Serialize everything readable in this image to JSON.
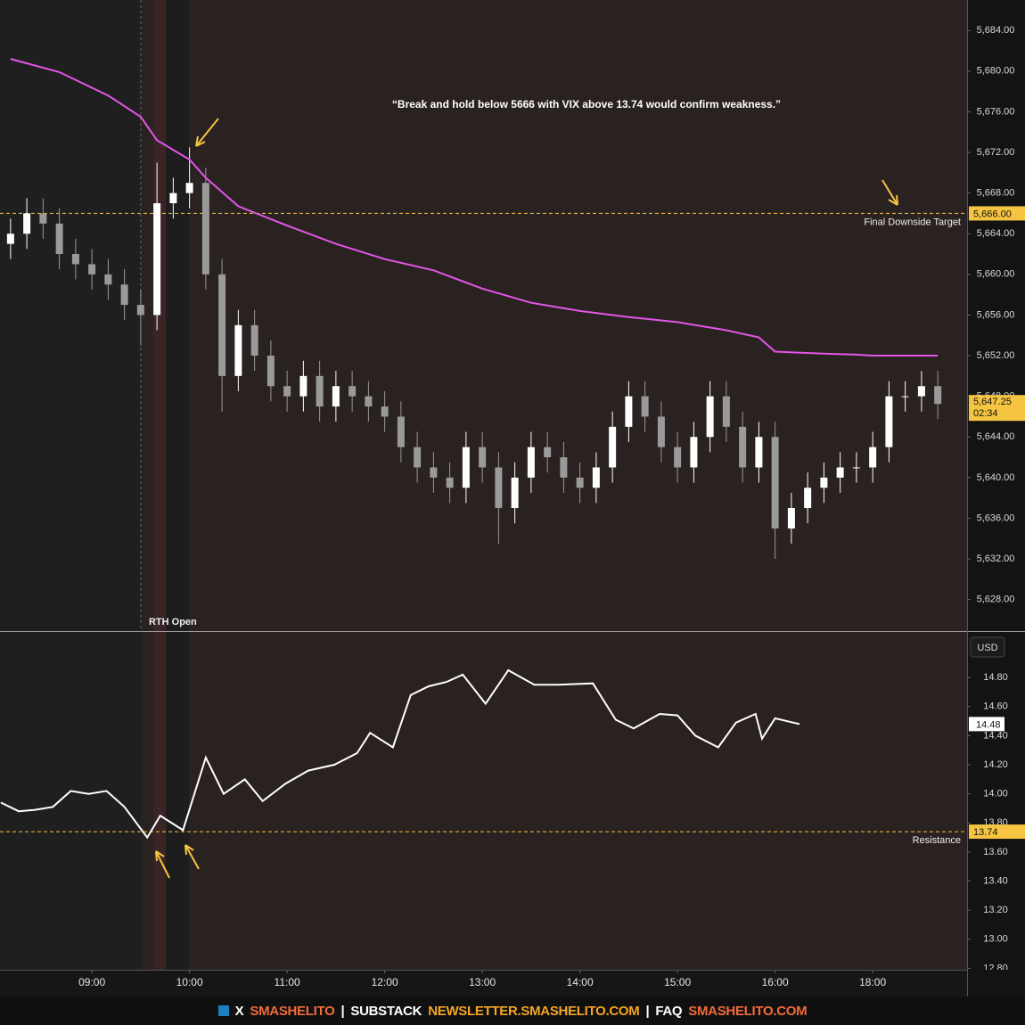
{
  "chart_data": [
    {
      "type": "candlestick",
      "annotation": "“Break and hold below 5666 with VIX above 13.74 would confirm weakness.”",
      "x": [
        490,
        500,
        510,
        520,
        530,
        540,
        550,
        560,
        570,
        580,
        590,
        600,
        610,
        620,
        630,
        640,
        650,
        660,
        670,
        680,
        690,
        700,
        710,
        720,
        730,
        740,
        750,
        760,
        770,
        780,
        790,
        800,
        810,
        820,
        830,
        840,
        850,
        860,
        870,
        880,
        890,
        900,
        910,
        920,
        930,
        940,
        950,
        960,
        970,
        980,
        990,
        1000,
        1010,
        1080,
        1090,
        1100,
        1110,
        1120
      ],
      "open": [
        5663,
        5664,
        5666,
        5665,
        5662,
        5661,
        5660,
        5659,
        5657,
        5656,
        5667,
        5668,
        5669,
        5660,
        5650,
        5655,
        5652,
        5649,
        5648,
        5650,
        5647,
        5649,
        5648,
        5647,
        5646,
        5643,
        5641,
        5640,
        5639,
        5643,
        5641,
        5637,
        5640,
        5643,
        5642,
        5640,
        5639,
        5641,
        5645,
        5648,
        5646,
        5643,
        5641,
        5644,
        5648,
        5645,
        5641,
        5644,
        5635,
        5637,
        5639,
        5640,
        5641,
        5641,
        5643,
        5648,
        5648,
        5649
      ],
      "high": [
        5665.5,
        5667.5,
        5667.5,
        5666.5,
        5663.5,
        5662.5,
        5661.5,
        5660.5,
        5658.5,
        5671,
        5669.5,
        5672.5,
        5670.5,
        5661.5,
        5656.5,
        5656.5,
        5653.5,
        5650.5,
        5651.5,
        5651.5,
        5650.5,
        5650.5,
        5649.5,
        5648.5,
        5647.5,
        5644.5,
        5642.5,
        5641.5,
        5644.5,
        5644.5,
        5642.5,
        5641.5,
        5644.5,
        5644.5,
        5643.5,
        5641.5,
        5642.5,
        5646.5,
        5649.5,
        5649.5,
        5647.5,
        5644.5,
        5645.5,
        5649.5,
        5649.5,
        5646.5,
        5645.5,
        5645.5,
        5638.5,
        5640.5,
        5641.5,
        5642.5,
        5642.5,
        5644.5,
        5649.5,
        5649.5,
        5650.5,
        5650.5
      ],
      "low": [
        5661.5,
        5662.5,
        5663.5,
        5660.5,
        5659.5,
        5658.5,
        5657.5,
        5655.5,
        5653,
        5654.5,
        5665.5,
        5666.5,
        5658.5,
        5646.5,
        5648.5,
        5650.5,
        5647.5,
        5646.5,
        5646.5,
        5645.5,
        5645.5,
        5646.5,
        5645.5,
        5644.5,
        5641.5,
        5639.5,
        5638.5,
        5637.5,
        5637.5,
        5639.5,
        5633.5,
        5635.5,
        5638.5,
        5640.5,
        5638.5,
        5637.5,
        5637.5,
        5639.5,
        5643.5,
        5644.5,
        5641.5,
        5639.5,
        5639.5,
        5642.5,
        5643.5,
        5639.5,
        5639.5,
        5632,
        5633.5,
        5635.5,
        5637.5,
        5638.5,
        5639.5,
        5639.5,
        5641.5,
        5646.5,
        5646.5,
        5645.75
      ],
      "close": [
        5664,
        5666,
        5665,
        5662,
        5661,
        5660,
        5659,
        5657,
        5656,
        5667,
        5668,
        5669,
        5660,
        5650,
        5655,
        5652,
        5649,
        5648,
        5650,
        5647,
        5649,
        5648,
        5647,
        5646,
        5643,
        5641,
        5640,
        5639,
        5643,
        5641,
        5637,
        5640,
        5643,
        5642,
        5640,
        5639,
        5641,
        5645,
        5648,
        5646,
        5643,
        5641,
        5644,
        5648,
        5645,
        5641,
        5644,
        5635,
        5637,
        5639,
        5640,
        5641,
        5641,
        5643,
        5648,
        5648,
        5649,
        5647.25
      ],
      "up_color": "#ffffff",
      "down_color": "#9a9a9a",
      "line": {
        "x": [
          490,
          520,
          550,
          570,
          580,
          600,
          610,
          630,
          660,
          690,
          720,
          750,
          780,
          810,
          840,
          870,
          900,
          930,
          950,
          960,
          990,
          1010,
          1080,
          1100,
          1120
        ],
        "values": [
          5681.2,
          5679.9,
          5677.6,
          5675.5,
          5673.2,
          5671.3,
          5669.5,
          5666.7,
          5664.8,
          5663.0,
          5661.5,
          5660.4,
          5658.6,
          5657.2,
          5656.4,
          5655.8,
          5655.3,
          5654.5,
          5653.8,
          5652.4,
          5652.2,
          5652.1,
          5652.0,
          5652.0,
          5652.0
        ],
        "color": "#e356e8"
      },
      "hlines": [
        {
          "value": 5666,
          "value_label": "5,666.00",
          "label": "Final Downside Target",
          "color": "#f5c542"
        }
      ],
      "last_price": {
        "value": 5647.25,
        "value_label": "5,647.25",
        "countdown": "02:34",
        "color": "#f5c542"
      },
      "vline": {
        "x": 570,
        "label": "RTH Open"
      },
      "xlim": [
        483.5,
        1138
      ],
      "xbreak": [
        1020,
        1080
      ],
      "ylim": [
        5624.9,
        5687.0
      ],
      "yticks": [
        {
          "value": 5628,
          "label": "5,628.00"
        },
        {
          "value": 5632,
          "label": "5,632.00"
        },
        {
          "value": 5636,
          "label": "5,636.00"
        },
        {
          "value": 5640,
          "label": "5,640.00"
        },
        {
          "value": 5644,
          "label": "5,644.00"
        },
        {
          "value": 5648,
          "label": "5,648.00"
        },
        {
          "value": 5652,
          "label": "5,652.00"
        },
        {
          "value": 5656,
          "label": "5,656.00"
        },
        {
          "value": 5660,
          "label": "5,660.00"
        },
        {
          "value": 5664,
          "label": "5,664.00"
        },
        {
          "value": 5668,
          "label": "5,668.00"
        },
        {
          "value": 5672,
          "label": "5,672.00"
        },
        {
          "value": 5676,
          "label": "5,676.00"
        },
        {
          "value": 5680,
          "label": "5,680.00"
        },
        {
          "value": 5684,
          "label": "5,684.00"
        }
      ]
    },
    {
      "type": "line",
      "x": [
        484,
        495,
        505,
        516,
        527,
        538,
        549,
        560,
        574,
        582,
        596,
        610,
        621,
        634,
        645,
        659,
        673,
        689,
        703,
        711,
        725,
        736,
        747,
        758,
        768,
        782,
        796,
        812,
        826,
        848,
        862,
        873,
        889,
        900,
        911,
        925,
        936,
        948,
        952,
        960,
        975
      ],
      "values": [
        13.94,
        13.88,
        13.89,
        13.91,
        14.02,
        14.0,
        14.02,
        13.91,
        13.7,
        13.85,
        13.75,
        14.25,
        14.0,
        14.1,
        13.95,
        14.07,
        14.16,
        14.2,
        14.28,
        14.42,
        14.32,
        14.68,
        14.74,
        14.77,
        14.82,
        14.62,
        14.85,
        14.75,
        14.75,
        14.76,
        14.51,
        14.45,
        14.55,
        14.54,
        14.4,
        14.32,
        14.49,
        14.55,
        14.38,
        14.52,
        14.48
      ],
      "color": "#ffffff",
      "unit_label": "USD",
      "hlines": [
        {
          "value": 13.74,
          "label": "Resistance",
          "color": "#f5c542"
        }
      ],
      "last_value": {
        "value": 14.48
      },
      "xlim": [
        483.5,
        1138
      ],
      "xbreak": [
        1020,
        1080
      ],
      "xticks": [
        {
          "value": 540,
          "label": "09:00"
        },
        {
          "value": 600,
          "label": "10:00"
        },
        {
          "value": 660,
          "label": "11:00"
        },
        {
          "value": 720,
          "label": "12:00"
        },
        {
          "value": 780,
          "label": "13:00"
        },
        {
          "value": 840,
          "label": "14:00"
        },
        {
          "value": 900,
          "label": "15:00"
        },
        {
          "value": 960,
          "label": "16:00"
        },
        {
          "value": 1080,
          "label": "18:00"
        }
      ],
      "ylim": [
        12.79,
        15.12
      ],
      "yticks": [
        {
          "value": 12.8,
          "label": "12.80"
        },
        {
          "value": 13.0,
          "label": "13.00"
        },
        {
          "value": 13.2,
          "label": "13.20"
        },
        {
          "value": 13.4,
          "label": "13.40"
        },
        {
          "value": 13.6,
          "label": "13.60"
        },
        {
          "value": 13.8,
          "label": "13.80"
        },
        {
          "value": 14.0,
          "label": "14.00"
        },
        {
          "value": 14.2,
          "label": "14.20"
        },
        {
          "value": 14.4,
          "label": "14.40"
        },
        {
          "value": 14.6,
          "label": "14.60"
        },
        {
          "value": 14.8,
          "label": "14.80"
        }
      ]
    }
  ],
  "footer": {
    "separator": "|",
    "parts": [
      "X",
      "SMASHELITO",
      "SUBSTACK",
      "NEWSLETTER.SMASHELITO.COM",
      "FAQ",
      "SMASHELITO.COM"
    ]
  }
}
